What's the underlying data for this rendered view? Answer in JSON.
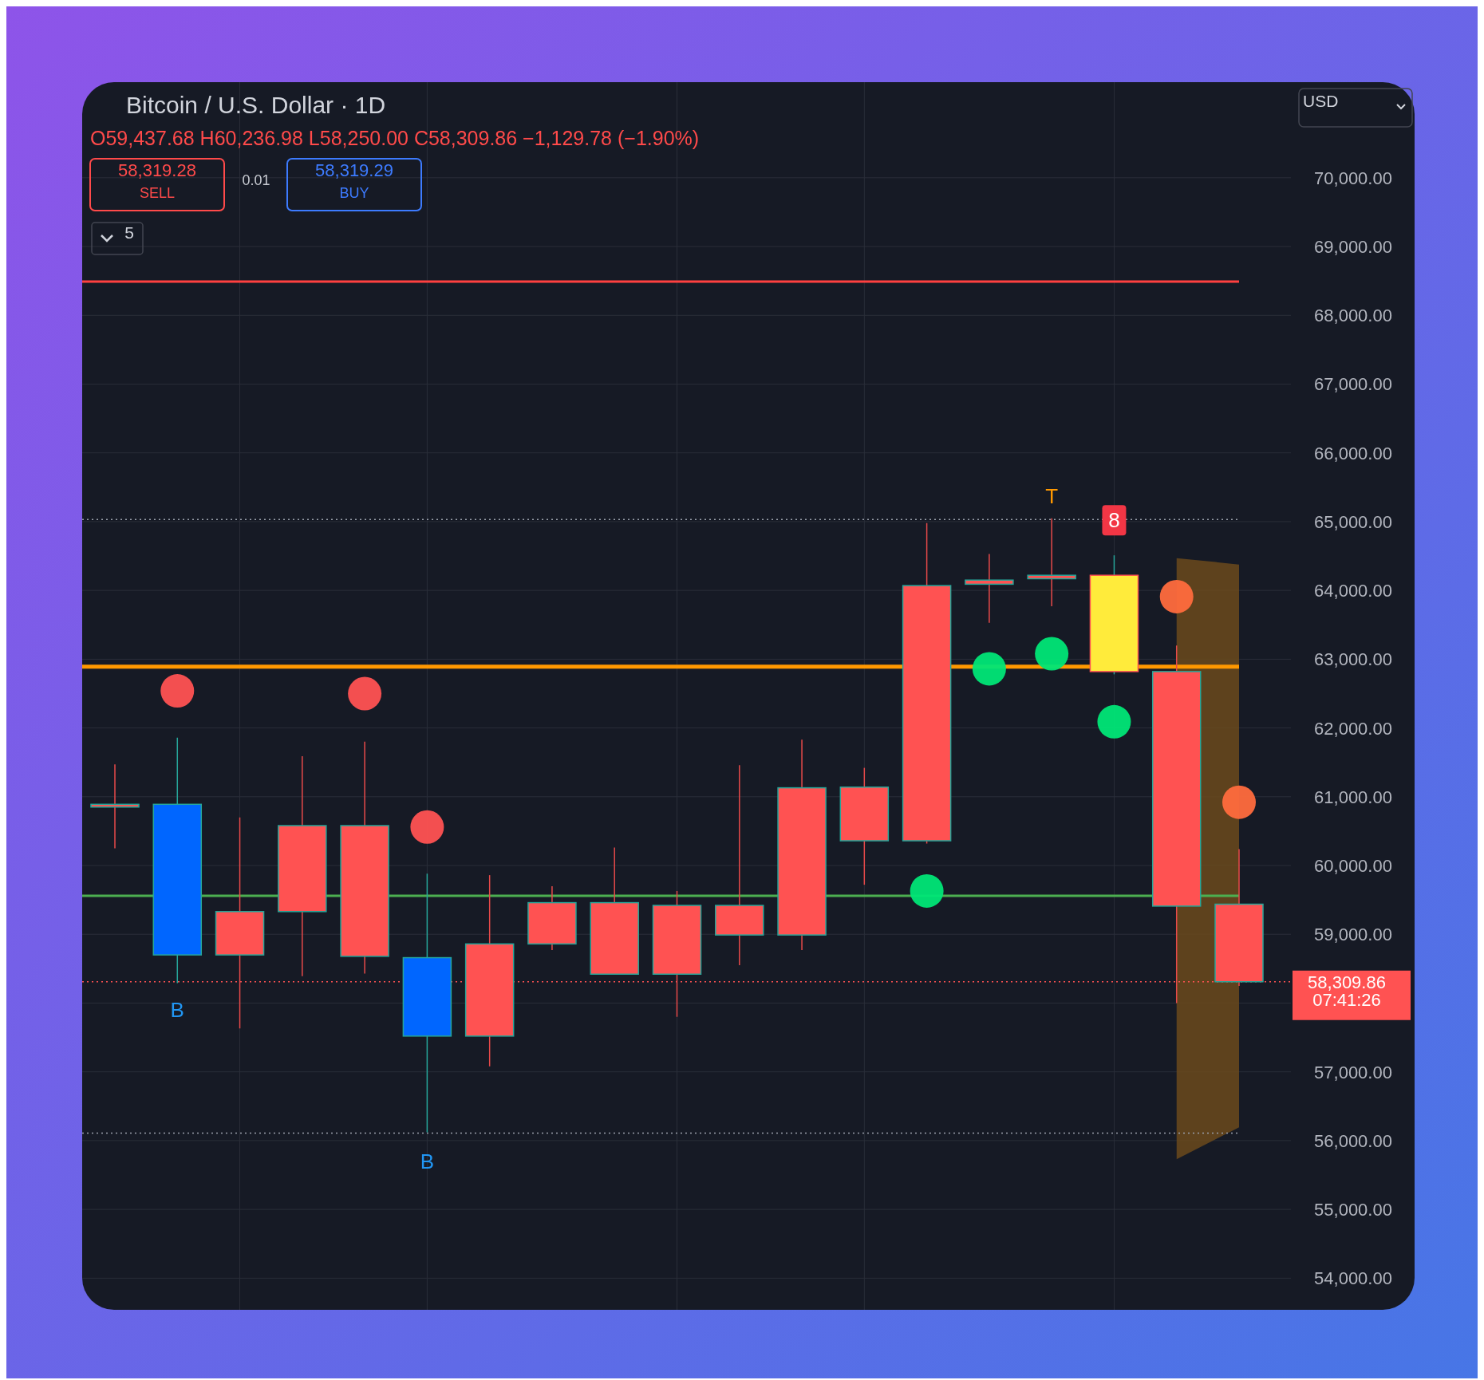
{
  "chart_data": {
    "type": "candlestick",
    "title": "Bitcoin / U.S. Dollar · 1D",
    "subtitle": "O59,437.68 H60,236.98 L58,250.00 C58,309.86 −1,129.78 (−1.90%)",
    "categories": [
      null,
      null,
      null,
      null,
      null,
      null,
      null,
      null,
      null,
      null,
      null,
      null,
      null,
      null,
      null,
      null,
      null,
      null,
      null
    ],
    "ohlc": [
      [
        60890,
        61470,
        60250,
        60850
      ],
      [
        60890,
        61860,
        58290,
        58700
      ],
      [
        59330,
        60700,
        57630,
        58700
      ],
      [
        60580,
        61590,
        58390,
        59330
      ],
      [
        60580,
        61800,
        58430,
        58680
      ],
      [
        58660,
        59880,
        56120,
        57520
      ],
      [
        58860,
        59860,
        57080,
        57520
      ],
      [
        59460,
        59700,
        58770,
        58860
      ],
      [
        59460,
        60260,
        58420,
        58420
      ],
      [
        59420,
        59630,
        57800,
        58420
      ],
      [
        59420,
        61460,
        58550,
        58990
      ],
      [
        61130,
        61830,
        58770,
        58990
      ],
      [
        61140,
        61420,
        59720,
        60360
      ],
      [
        64070,
        64980,
        60320,
        60360
      ],
      [
        64150,
        64530,
        63530,
        64090
      ],
      [
        64220,
        65050,
        63770,
        64170
      ],
      [
        64220,
        64510,
        62780,
        62820
      ],
      [
        62820,
        63200,
        58000,
        59410
      ],
      [
        59437.68,
        60236.98,
        58250.0,
        58309.86
      ]
    ],
    "colors": [
      "#ff5252",
      "#0066ff",
      "#ff5252",
      "#ff5252",
      "#ff5252",
      "#0066ff",
      "#ff5252",
      "#ff5252",
      "#ff5252",
      "#ff5252",
      "#ff5252",
      "#ff5252",
      "#ff5252",
      "#ff5252",
      "#ff5252",
      "#ff5252",
      "#ffeb3b",
      "#ff5252",
      "#ff5252"
    ],
    "series": [
      {
        "type": "scatter",
        "color": "#ff5252",
        "values": [
          null,
          62540,
          null,
          null,
          62500,
          60560,
          null,
          null,
          null,
          null,
          null,
          null,
          null,
          null,
          null,
          null,
          null,
          null,
          null
        ]
      },
      {
        "type": "scatter",
        "color": "#ff6b3d",
        "values": [
          null,
          null,
          null,
          null,
          null,
          null,
          null,
          null,
          null,
          null,
          null,
          null,
          null,
          null,
          null,
          null,
          null,
          63910,
          60920
        ]
      },
      {
        "type": "scatter",
        "color": "#00e676",
        "values": [
          null,
          null,
          null,
          null,
          null,
          null,
          null,
          null,
          null,
          null,
          null,
          null,
          null,
          59630,
          62860,
          63080,
          62090,
          null,
          null
        ]
      }
    ],
    "ylim": [
      53540,
      71390
    ],
    "yticks": [
      {
        "value": 54000,
        "label": "54,000.00"
      },
      {
        "value": 55000,
        "label": "55,000.00"
      },
      {
        "value": 56000,
        "label": "56,000.00"
      },
      {
        "value": 57000,
        "label": "57,000.00"
      },
      {
        "value": 58000,
        "label": null
      },
      {
        "value": 59000,
        "label": "59,000.00"
      },
      {
        "value": 60000,
        "label": "60,000.00"
      },
      {
        "value": 61000,
        "label": "61,000.00"
      },
      {
        "value": 62000,
        "label": "62,000.00"
      },
      {
        "value": 63000,
        "label": "63,000.00"
      },
      {
        "value": 64000,
        "label": "64,000.00"
      },
      {
        "value": 65000,
        "label": "65,000.00"
      },
      {
        "value": 66000,
        "label": "66,000.00"
      },
      {
        "value": 67000,
        "label": "67,000.00"
      },
      {
        "value": 68000,
        "label": "68,000.00"
      },
      {
        "value": 69000,
        "label": "69,000.00"
      },
      {
        "value": 70000,
        "label": "70,000.00"
      }
    ],
    "grid": true,
    "ref_lines": [
      {
        "axis": "y",
        "value": 68490,
        "color": "#ff4040"
      },
      {
        "axis": "y",
        "value": 62890,
        "color": "#ff9800"
      },
      {
        "axis": "y",
        "value": 59560,
        "color": "#4caf50"
      },
      {
        "axis": "y",
        "value": 65030,
        "color": "#9aa0ac",
        "line_style": "dotted"
      },
      {
        "axis": "y",
        "value": 56110,
        "color": "#9aa0ac",
        "line_style": "dotted"
      },
      {
        "axis": "y",
        "value": 58309.86,
        "label": "58,309.86",
        "color": "#ff5252",
        "line_style": "dotted"
      }
    ],
    "bands": [
      {
        "axis": "y",
        "from": 55730,
        "to": 64470,
        "color": "#6b4a1c"
      }
    ],
    "annotations": [
      "58,319.28",
      "SELL",
      "0.01",
      "58,319.29",
      "BUY",
      "5",
      "USD",
      "07:41:26",
      "B",
      "B",
      "T",
      "8"
    ]
  }
}
